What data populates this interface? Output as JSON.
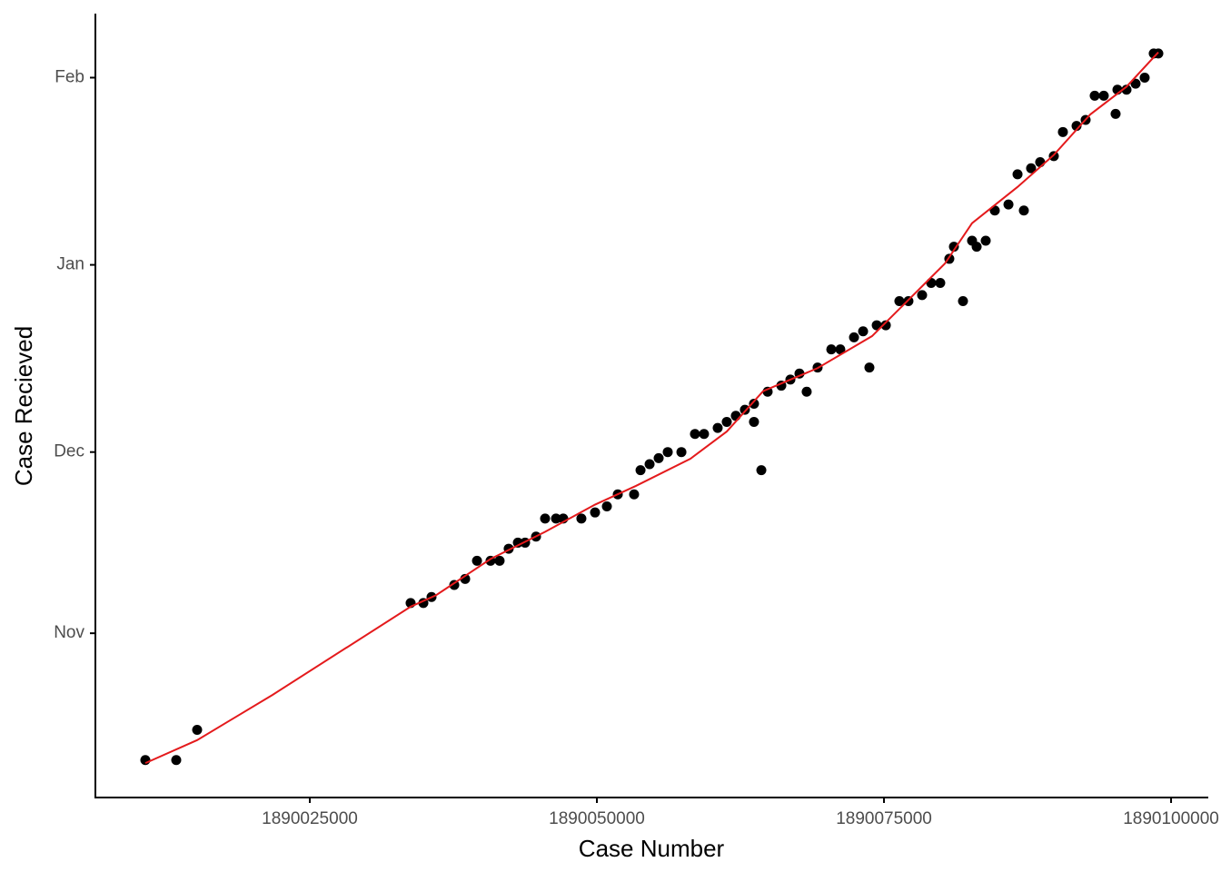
{
  "chart_data": {
    "type": "scatter",
    "x_label": "Case Number",
    "y_label": "Case Recieved",
    "xlim": [
      1890006330,
      1890103240
    ],
    "ylim": [
      -27.2,
      102.6
    ],
    "xticks": [
      1890025000,
      1890050000,
      1890075000,
      1890100000
    ],
    "yticks": [
      {
        "value": 0,
        "label": "Nov"
      },
      {
        "value": 30,
        "label": "Dec"
      },
      {
        "value": 61,
        "label": "Jan"
      },
      {
        "value": 92,
        "label": "Feb"
      }
    ],
    "series": [
      {
        "type": "scatter",
        "color": "#000000",
        "x": [
          1890010680,
          1890013370,
          1890015190,
          1890033780,
          1890034890,
          1890035600,
          1890037580,
          1890038530,
          1890039560,
          1890040740,
          1890041530,
          1890042320,
          1890043120,
          1890043750,
          1890044700,
          1890045490,
          1890046440,
          1890047070,
          1890048650,
          1890049840,
          1890050870,
          1890051820,
          1890053240,
          1890053800,
          1890054590,
          1890055380,
          1890056170,
          1890057360,
          1890058540,
          1890059330,
          1890060520,
          1890061310,
          1890062100,
          1890062890,
          1890063680,
          1890063680,
          1890064320,
          1890064870,
          1890066060,
          1890066850,
          1890067640,
          1890068270,
          1890069220,
          1890070410,
          1890071200,
          1890072390,
          1890073180,
          1890073730,
          1890074370,
          1890075160,
          1890076340,
          1890077130,
          1890078320,
          1890079110,
          1890079900,
          1890080690,
          1890081090,
          1890081880,
          1890082670,
          1890083070,
          1890083860,
          1890084650,
          1890085840,
          1890086630,
          1890087180,
          1890087810,
          1890088600,
          1890089790,
          1890090580,
          1890091770,
          1890092560,
          1890093350,
          1890094140,
          1890095170,
          1890095330,
          1890096120,
          1890096910,
          1890097700,
          1890098490,
          1890098890
        ],
        "values": [
          -21,
          -21,
          -16,
          5,
          5,
          6,
          8,
          9,
          12,
          12,
          12,
          14,
          15,
          15,
          16,
          19,
          19,
          19,
          19,
          20,
          21,
          23,
          23,
          27,
          28,
          29,
          30,
          30,
          33,
          33,
          34,
          35,
          36,
          37,
          38,
          35,
          27,
          40,
          41,
          42,
          43,
          40,
          44,
          47,
          47,
          49,
          50,
          44,
          51,
          51,
          55,
          55,
          56,
          58,
          58,
          62,
          64,
          55,
          65,
          64,
          65,
          70,
          71,
          76,
          70,
          77,
          78,
          79,
          83,
          84,
          85,
          89,
          89,
          86,
          90,
          90,
          91,
          92,
          96,
          96
        ]
      },
      {
        "type": "line",
        "color": "#e41a1c",
        "x": [
          1890010680,
          1890015190,
          1890021760,
          1890033780,
          1890036000,
          1890040740,
          1890045490,
          1890049840,
          1890053400,
          1890058150,
          1890061310,
          1890064480,
          1890069220,
          1890073960,
          1890077130,
          1890080300,
          1890082670,
          1890086630,
          1890089790,
          1890092960,
          1890096120,
          1890098890
        ],
        "values": [
          -21.5,
          -17.7,
          -10.2,
          4.4,
          6.3,
          12.3,
          16.8,
          21.3,
          24.4,
          28.9,
          33.4,
          40.1,
          43.9,
          49.2,
          55.2,
          61.2,
          67.9,
          73.9,
          79.2,
          85.9,
          90.5,
          96.2
        ]
      }
    ]
  }
}
